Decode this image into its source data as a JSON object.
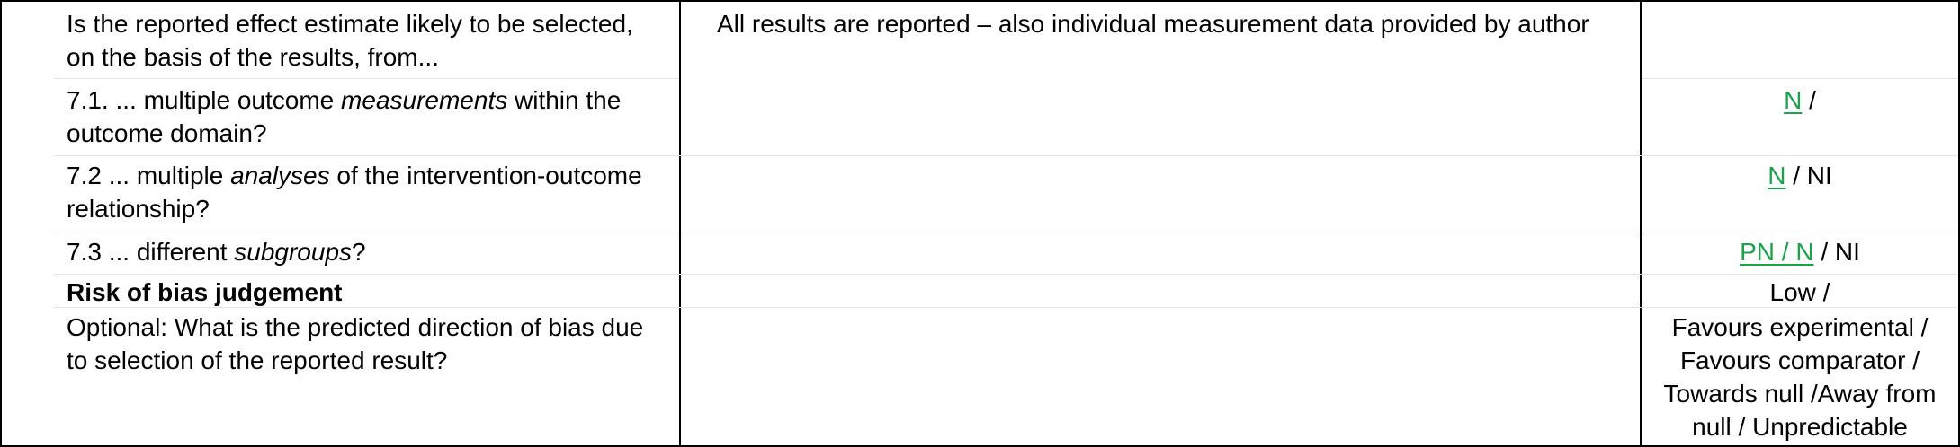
{
  "rows": {
    "q7": {
      "question_line1": "Is the reported effect estimate likely to be selected,",
      "question_line2": "on the basis of the results, from...",
      "comment": "All results are reported – also individual measurement data provided by author"
    },
    "q7_1": {
      "prefix": "7.1. ... multiple outcome ",
      "emph": "measurements",
      "suffix": " within the",
      "line2": "outcome domain?",
      "answer_selected": "N",
      "answer_rest": " /"
    },
    "q7_2": {
      "prefix": "7.2 ... multiple ",
      "emph": "analyses",
      "suffix": " of the intervention-outcome",
      "line2": "relationship?",
      "answer_selected": "N",
      "answer_rest": " / NI"
    },
    "q7_3": {
      "prefix": "7.3 ... different ",
      "emph": "subgroups",
      "suffix": "?",
      "answer_selected": "PN / N",
      "answer_rest": " / NI"
    },
    "risk": {
      "label": "Risk of bias judgement",
      "answer": "Low /"
    },
    "optional": {
      "line1": "Optional: What is the predicted direction of bias due",
      "line2": "to selection of the reported result?",
      "answer_line1": "Favours experimental /",
      "answer_line2": "Favours comparator /",
      "answer_line3": "Towards null /Away from",
      "answer_line4": "null / Unpredictable"
    }
  },
  "colors": {
    "selected_answer": "#1aa34a",
    "border": "#000000",
    "row_separator": "#e3e3e3"
  }
}
